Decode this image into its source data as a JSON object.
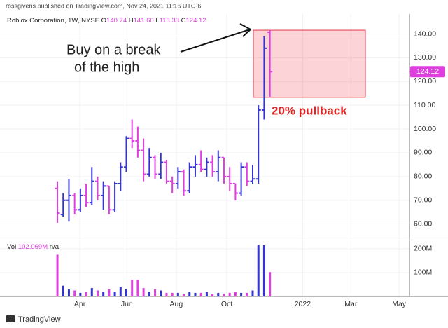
{
  "header": {
    "publisher": "rossgivens published on TradingView.com, Nov 24, 2021 11:16 UTC-6"
  },
  "footer": {
    "brand": "TradingView"
  },
  "chart_data": {
    "type": "ohlc",
    "title": "Roblox Corporation, 1W, NYSE",
    "readout": [
      {
        "key": "O",
        "value": "140.74"
      },
      {
        "key": "H",
        "value": "141.60"
      },
      {
        "key": "L",
        "value": "113.33"
      },
      {
        "key": "C",
        "value": "124.12"
      }
    ],
    "up_color": "#3434cf",
    "down_color": "#e03fe0",
    "grid": true,
    "open": [
      75,
      64,
      70,
      72,
      66,
      72,
      69,
      78,
      72,
      76,
      66,
      77,
      84,
      96,
      95,
      91,
      81,
      88,
      81,
      86,
      78,
      77,
      82,
      74,
      84,
      85,
      83,
      86,
      82,
      88,
      80,
      77,
      73,
      84,
      78,
      79,
      108,
      140.74
    ],
    "high": [
      78,
      73,
      79,
      73,
      75,
      77,
      84,
      80,
      78,
      76,
      78,
      86,
      97,
      104,
      101,
      96,
      92,
      89,
      90,
      87,
      80,
      84,
      83,
      86,
      89,
      91,
      88,
      89,
      91,
      88,
      84,
      77,
      86,
      86,
      85,
      110,
      139,
      141.6
    ],
    "low": [
      60.5,
      63,
      61,
      64,
      65,
      67,
      68,
      70,
      66,
      64,
      65,
      74,
      82,
      92,
      88,
      78,
      80,
      79,
      79,
      77,
      73,
      75,
      72,
      73,
      80,
      82,
      80,
      80,
      78,
      77,
      74,
      70,
      72,
      76,
      77,
      77,
      104,
      113.33
    ],
    "close": [
      64.6,
      70,
      72,
      66,
      72,
      69,
      78,
      72,
      76,
      66,
      77,
      84,
      96,
      95,
      91,
      81,
      88,
      81,
      86,
      78,
      77,
      82,
      74,
      84,
      85,
      83,
      86,
      82,
      88,
      80,
      77,
      73,
      84,
      78,
      79,
      108,
      134,
      124.12
    ],
    "last_price": 124.12,
    "xlim": [
      -10,
      61.3
    ],
    "xticks": [
      {
        "value": 3.9,
        "label": "Apr"
      },
      {
        "value": 12.1,
        "label": "Jun"
      },
      {
        "value": 20.7,
        "label": "Aug"
      },
      {
        "value": 29.5,
        "label": "Oct"
      },
      {
        "value": 42.7,
        "label": "2022"
      },
      {
        "value": 51.1,
        "label": "Mar"
      },
      {
        "value": 59.5,
        "label": "May"
      }
    ],
    "ylim": [
      53.4,
      148.4
    ],
    "yticks": [
      {
        "value": 60,
        "label": "60.00"
      },
      {
        "value": 70,
        "label": "70.00"
      },
      {
        "value": 80,
        "label": "80.00"
      },
      {
        "value": 90,
        "label": "90.00"
      },
      {
        "value": 100,
        "label": "100.00"
      },
      {
        "value": 110,
        "label": "110.00"
      },
      {
        "value": 120,
        "label": "120.00"
      },
      {
        "value": 130,
        "label": "130.00"
      },
      {
        "value": 140,
        "label": "140.00"
      }
    ],
    "volume": {
      "label": "Vol",
      "readout": {
        "value": 102069000,
        "label": "102.069M"
      },
      "status": "n/a",
      "values": [
        175000000,
        45000000,
        30000000,
        25000000,
        15000000,
        20000000,
        35000000,
        25000000,
        20000000,
        30000000,
        20000000,
        40000000,
        30000000,
        70000000,
        70000000,
        35000000,
        20000000,
        30000000,
        25000000,
        15000000,
        15000000,
        15000000,
        10000000,
        20000000,
        15000000,
        15000000,
        20000000,
        10000000,
        15000000,
        10000000,
        15000000,
        20000000,
        15000000,
        15000000,
        25000000,
        215000000,
        215000000,
        102069000
      ],
      "ylim": [
        0,
        238000000
      ],
      "yticks": [
        {
          "value": 100000000,
          "label": "100M"
        },
        {
          "value": 200000000,
          "label": "200M"
        }
      ]
    },
    "annotations": {
      "buy_text": [
        "Buy on a break",
        "of the high"
      ],
      "pullback_text": "20% pullback",
      "zone": {
        "top": 141.6,
        "bottom": 113.33
      }
    }
  }
}
